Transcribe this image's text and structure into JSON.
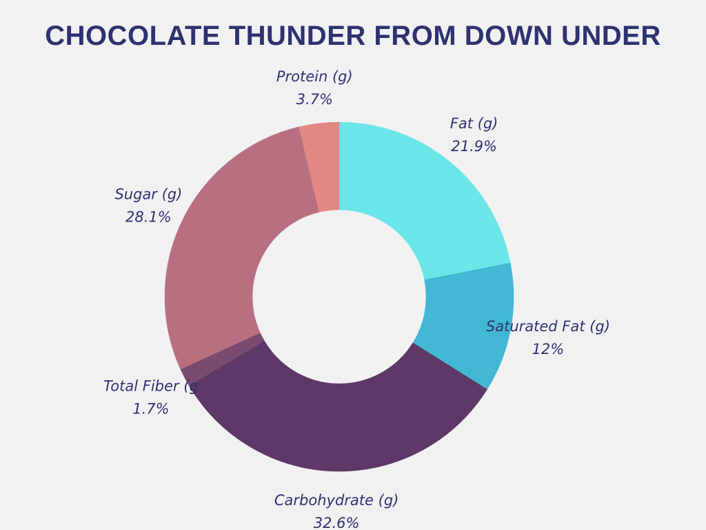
{
  "chart_data": {
    "type": "pie",
    "variant": "donut",
    "title": "CHOCOLATE THUNDER FROM DOWN UNDER",
    "slices": [
      {
        "label": "Fat (g)",
        "value_label": "21.9%",
        "value": 21.9,
        "color": "#6be6e8"
      },
      {
        "label": "Saturated Fat (g)",
        "value_label": "12%",
        "value": 12.0,
        "color": "#42b8d4"
      },
      {
        "label": "Carbohydrate (g)",
        "value_label": "32.6%",
        "value": 32.6,
        "color": "#5e3867"
      },
      {
        "label": "Total Fiber (g",
        "value_label": "1.7%",
        "value": 1.7,
        "color": "#7a4a6f"
      },
      {
        "label": "Sugar (g)",
        "value_label": "28.1%",
        "value": 28.1,
        "color": "#b87080"
      },
      {
        "label": "Protein (g)",
        "value_label": "3.7%",
        "value": 3.7,
        "color": "#e38785"
      }
    ],
    "start": "top",
    "direction": "clockwise"
  }
}
